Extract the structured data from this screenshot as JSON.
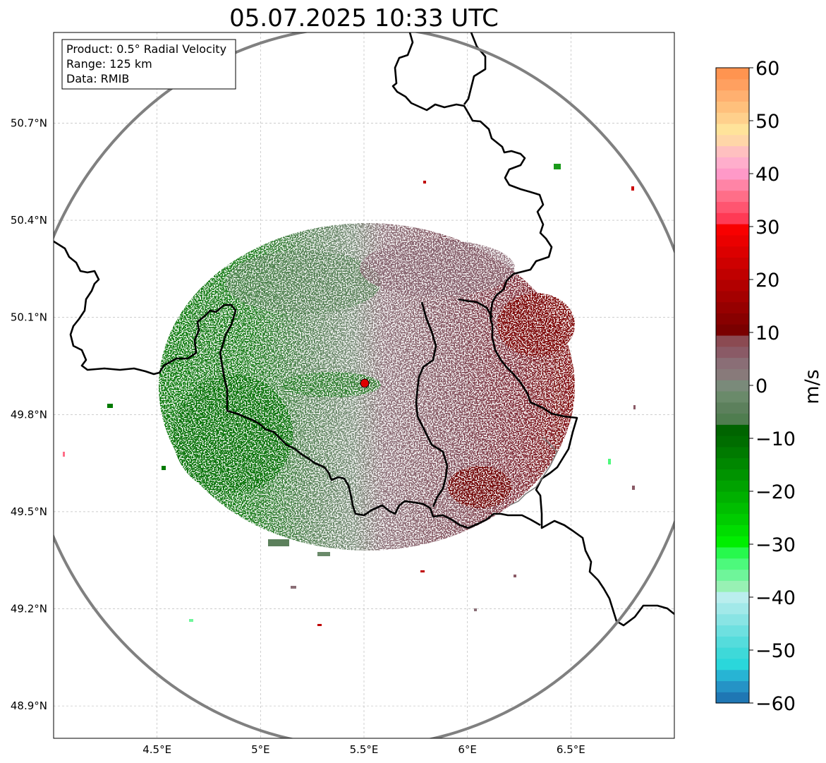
{
  "title": "05.07.2025 10:33 UTC",
  "info_box": {
    "product": "Product: 0.5° Radial Velocity",
    "range": "Range: 125 km",
    "source": "Data: RMIB"
  },
  "map": {
    "lon_range": [
      4.0,
      7.0
    ],
    "lat_range": [
      48.8,
      50.98
    ],
    "radar_site": {
      "lon": 5.505,
      "lat": 49.914
    },
    "range_ring_km": 125,
    "grid": true,
    "lon_ticks": [
      {
        "value": 4.5,
        "label": "4.5°E"
      },
      {
        "value": 5.0,
        "label": "5°E"
      },
      {
        "value": 5.5,
        "label": "5.5°E"
      },
      {
        "value": 6.0,
        "label": "6°E"
      },
      {
        "value": 6.5,
        "label": "6.5°E"
      }
    ],
    "lat_ticks": [
      {
        "value": 48.9,
        "label": "48.9°N"
      },
      {
        "value": 49.2,
        "label": "49.2°N"
      },
      {
        "value": 49.5,
        "label": "49.5°N"
      },
      {
        "value": 49.8,
        "label": "49.8°N"
      },
      {
        "value": 50.1,
        "label": "50.1°N"
      },
      {
        "value": 50.4,
        "label": "50.4°N"
      },
      {
        "value": 50.7,
        "label": "50.7°N"
      }
    ]
  },
  "colorbar": {
    "label": "m/s",
    "min": -60,
    "max": 60,
    "ticks": [
      {
        "value": -60,
        "label": "−60"
      },
      {
        "value": -50,
        "label": "−50"
      },
      {
        "value": -40,
        "label": "−40"
      },
      {
        "value": -30,
        "label": "−30"
      },
      {
        "value": -20,
        "label": "−20"
      },
      {
        "value": -10,
        "label": "−10"
      },
      {
        "value": 0,
        "label": "0"
      },
      {
        "value": 10,
        "label": "10"
      },
      {
        "value": 20,
        "label": "20"
      },
      {
        "value": 30,
        "label": "30"
      },
      {
        "value": 40,
        "label": "40"
      },
      {
        "value": 50,
        "label": "50"
      },
      {
        "value": 60,
        "label": "60"
      }
    ],
    "colors": [
      "#1f77b4",
      "#2593c6",
      "#27b4d4",
      "#2ad7db",
      "#3ed9d9",
      "#55dcdc",
      "#6ee0e0",
      "#89e4e4",
      "#a2e9e9",
      "#baeeee",
      "#98f1b4",
      "#6ff59a",
      "#4df97c",
      "#27f94d",
      "#00ee00",
      "#00dd00",
      "#00cc00",
      "#00be00",
      "#00b000",
      "#00a200",
      "#009300",
      "#008700",
      "#007a00",
      "#006d00",
      "#006400",
      "#4f7d4f",
      "#5c805c",
      "#6a8a6a",
      "#7a8a7a",
      "#887a7a",
      "#8a6e76",
      "#8a5a66",
      "#8b4a52",
      "#7a0000",
      "#880000",
      "#960000",
      "#a40000",
      "#b20000",
      "#c00000",
      "#ce0000",
      "#dc0000",
      "#ea0000",
      "#f80000",
      "#ff3a55",
      "#ff5570",
      "#ff6e88",
      "#ff84a6",
      "#ff99c8",
      "#ffaecc",
      "#ffc0c0",
      "#ffd6a8",
      "#ffe39a",
      "#ffd08c",
      "#ffc07c",
      "#ffb070",
      "#ffa060",
      "#ff9450"
    ]
  }
}
